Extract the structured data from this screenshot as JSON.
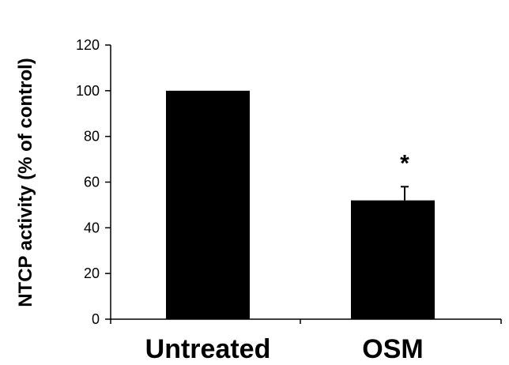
{
  "chart_data": {
    "type": "bar",
    "title": "",
    "xlabel": "",
    "ylabel": "NTCP activity (% of control)",
    "categories": [
      "Untreated",
      "OSM"
    ],
    "values": [
      100,
      52
    ],
    "error_bars": [
      0,
      6
    ],
    "annotations": [
      {
        "category": "OSM",
        "text": "*"
      }
    ],
    "ylim": [
      0,
      120
    ],
    "yticks": [
      0,
      20,
      40,
      60,
      80,
      100,
      120
    ],
    "grid": false,
    "legend": "none",
    "bar_color": "#000000"
  }
}
